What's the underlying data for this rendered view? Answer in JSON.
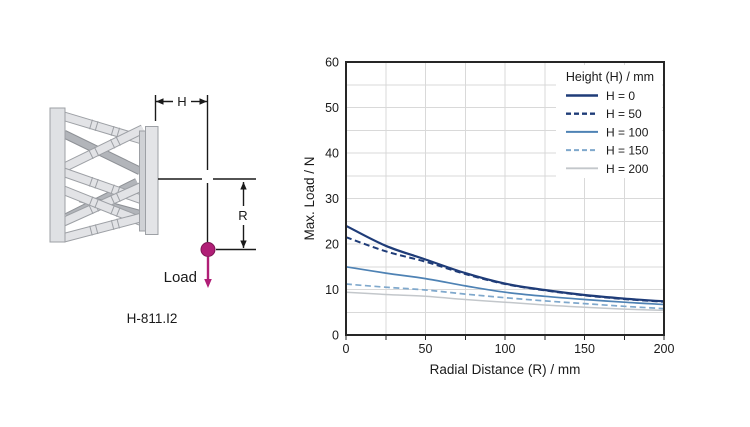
{
  "diagram": {
    "dim_h_label": "H",
    "dim_r_label": "R",
    "load_label": "Load",
    "model_label": "H-811.I2",
    "load_color": "#b01e76"
  },
  "chart_data": {
    "type": "line",
    "title": "",
    "xlabel": "Radial Distance (R) / mm",
    "ylabel": "Max. Load / N",
    "xlim": [
      0,
      200
    ],
    "ylim": [
      0,
      60
    ],
    "x_ticks": [
      0,
      50,
      100,
      150,
      200
    ],
    "y_ticks": [
      0,
      10,
      20,
      30,
      40,
      50,
      60
    ],
    "x_grid_step": 25,
    "y_grid_step": 5,
    "grid_on": true,
    "legend_title": "Height (H) / mm",
    "legend_position": "top-right-inside",
    "x": [
      0,
      25,
      50,
      75,
      100,
      125,
      150,
      175,
      200
    ],
    "series": [
      {
        "name": "H = 0",
        "color": "#1f3c78",
        "dash": null,
        "width": 2.2,
        "values": [
          24.0,
          19.6,
          16.6,
          13.6,
          11.3,
          9.9,
          8.8,
          8.0,
          7.4
        ]
      },
      {
        "name": "H = 50",
        "color": "#1f3c78",
        "dash": "6 3.5",
        "width": 2.0,
        "values": [
          21.5,
          18.4,
          16.1,
          13.4,
          11.2,
          9.8,
          8.7,
          7.9,
          7.3
        ]
      },
      {
        "name": "H = 100",
        "color": "#4e82b4",
        "dash": null,
        "width": 1.7,
        "values": [
          15.0,
          13.6,
          12.4,
          10.8,
          9.4,
          8.5,
          7.8,
          7.2,
          6.7
        ]
      },
      {
        "name": "H = 150",
        "color": "#7fa8cc",
        "dash": "6 3.5",
        "width": 1.7,
        "values": [
          11.2,
          10.5,
          9.9,
          9.0,
          8.2,
          7.5,
          6.9,
          6.3,
          5.8
        ]
      },
      {
        "name": "H = 200",
        "color": "#c3c7cb",
        "dash": null,
        "width": 1.5,
        "values": [
          9.4,
          8.9,
          8.5,
          7.8,
          7.2,
          6.6,
          6.1,
          5.7,
          5.4
        ]
      }
    ],
    "draw_order": [
      4,
      3,
      2,
      0,
      1
    ],
    "colors": {
      "grid": "#d9d9d9",
      "spine": "#262626",
      "text": "#1a1a1a",
      "legend_bg": "#ffffff"
    }
  }
}
